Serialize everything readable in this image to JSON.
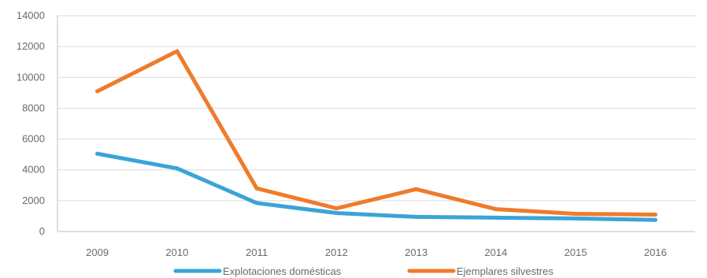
{
  "chart_data": {
    "type": "line",
    "title": "",
    "xlabel": "",
    "ylabel": "",
    "categories": [
      "2009",
      "2010",
      "2011",
      "2012",
      "2013",
      "2014",
      "2015",
      "2016"
    ],
    "ylim": [
      0,
      14000
    ],
    "yticks": [
      "0",
      "2000",
      "4000",
      "6000",
      "8000",
      "10000",
      "12000",
      "14000"
    ],
    "grid": true,
    "legend_position": "bottom",
    "series": [
      {
        "name": "Explotaciones domésticas",
        "color": "#3aa4d8",
        "values": [
          5050,
          4100,
          1850,
          1200,
          950,
          900,
          850,
          750
        ]
      },
      {
        "name": "Ejemplares silvestres",
        "color": "#ef7b2c",
        "values": [
          9100,
          11700,
          2800,
          1500,
          2750,
          1450,
          1150,
          1100
        ]
      }
    ]
  }
}
